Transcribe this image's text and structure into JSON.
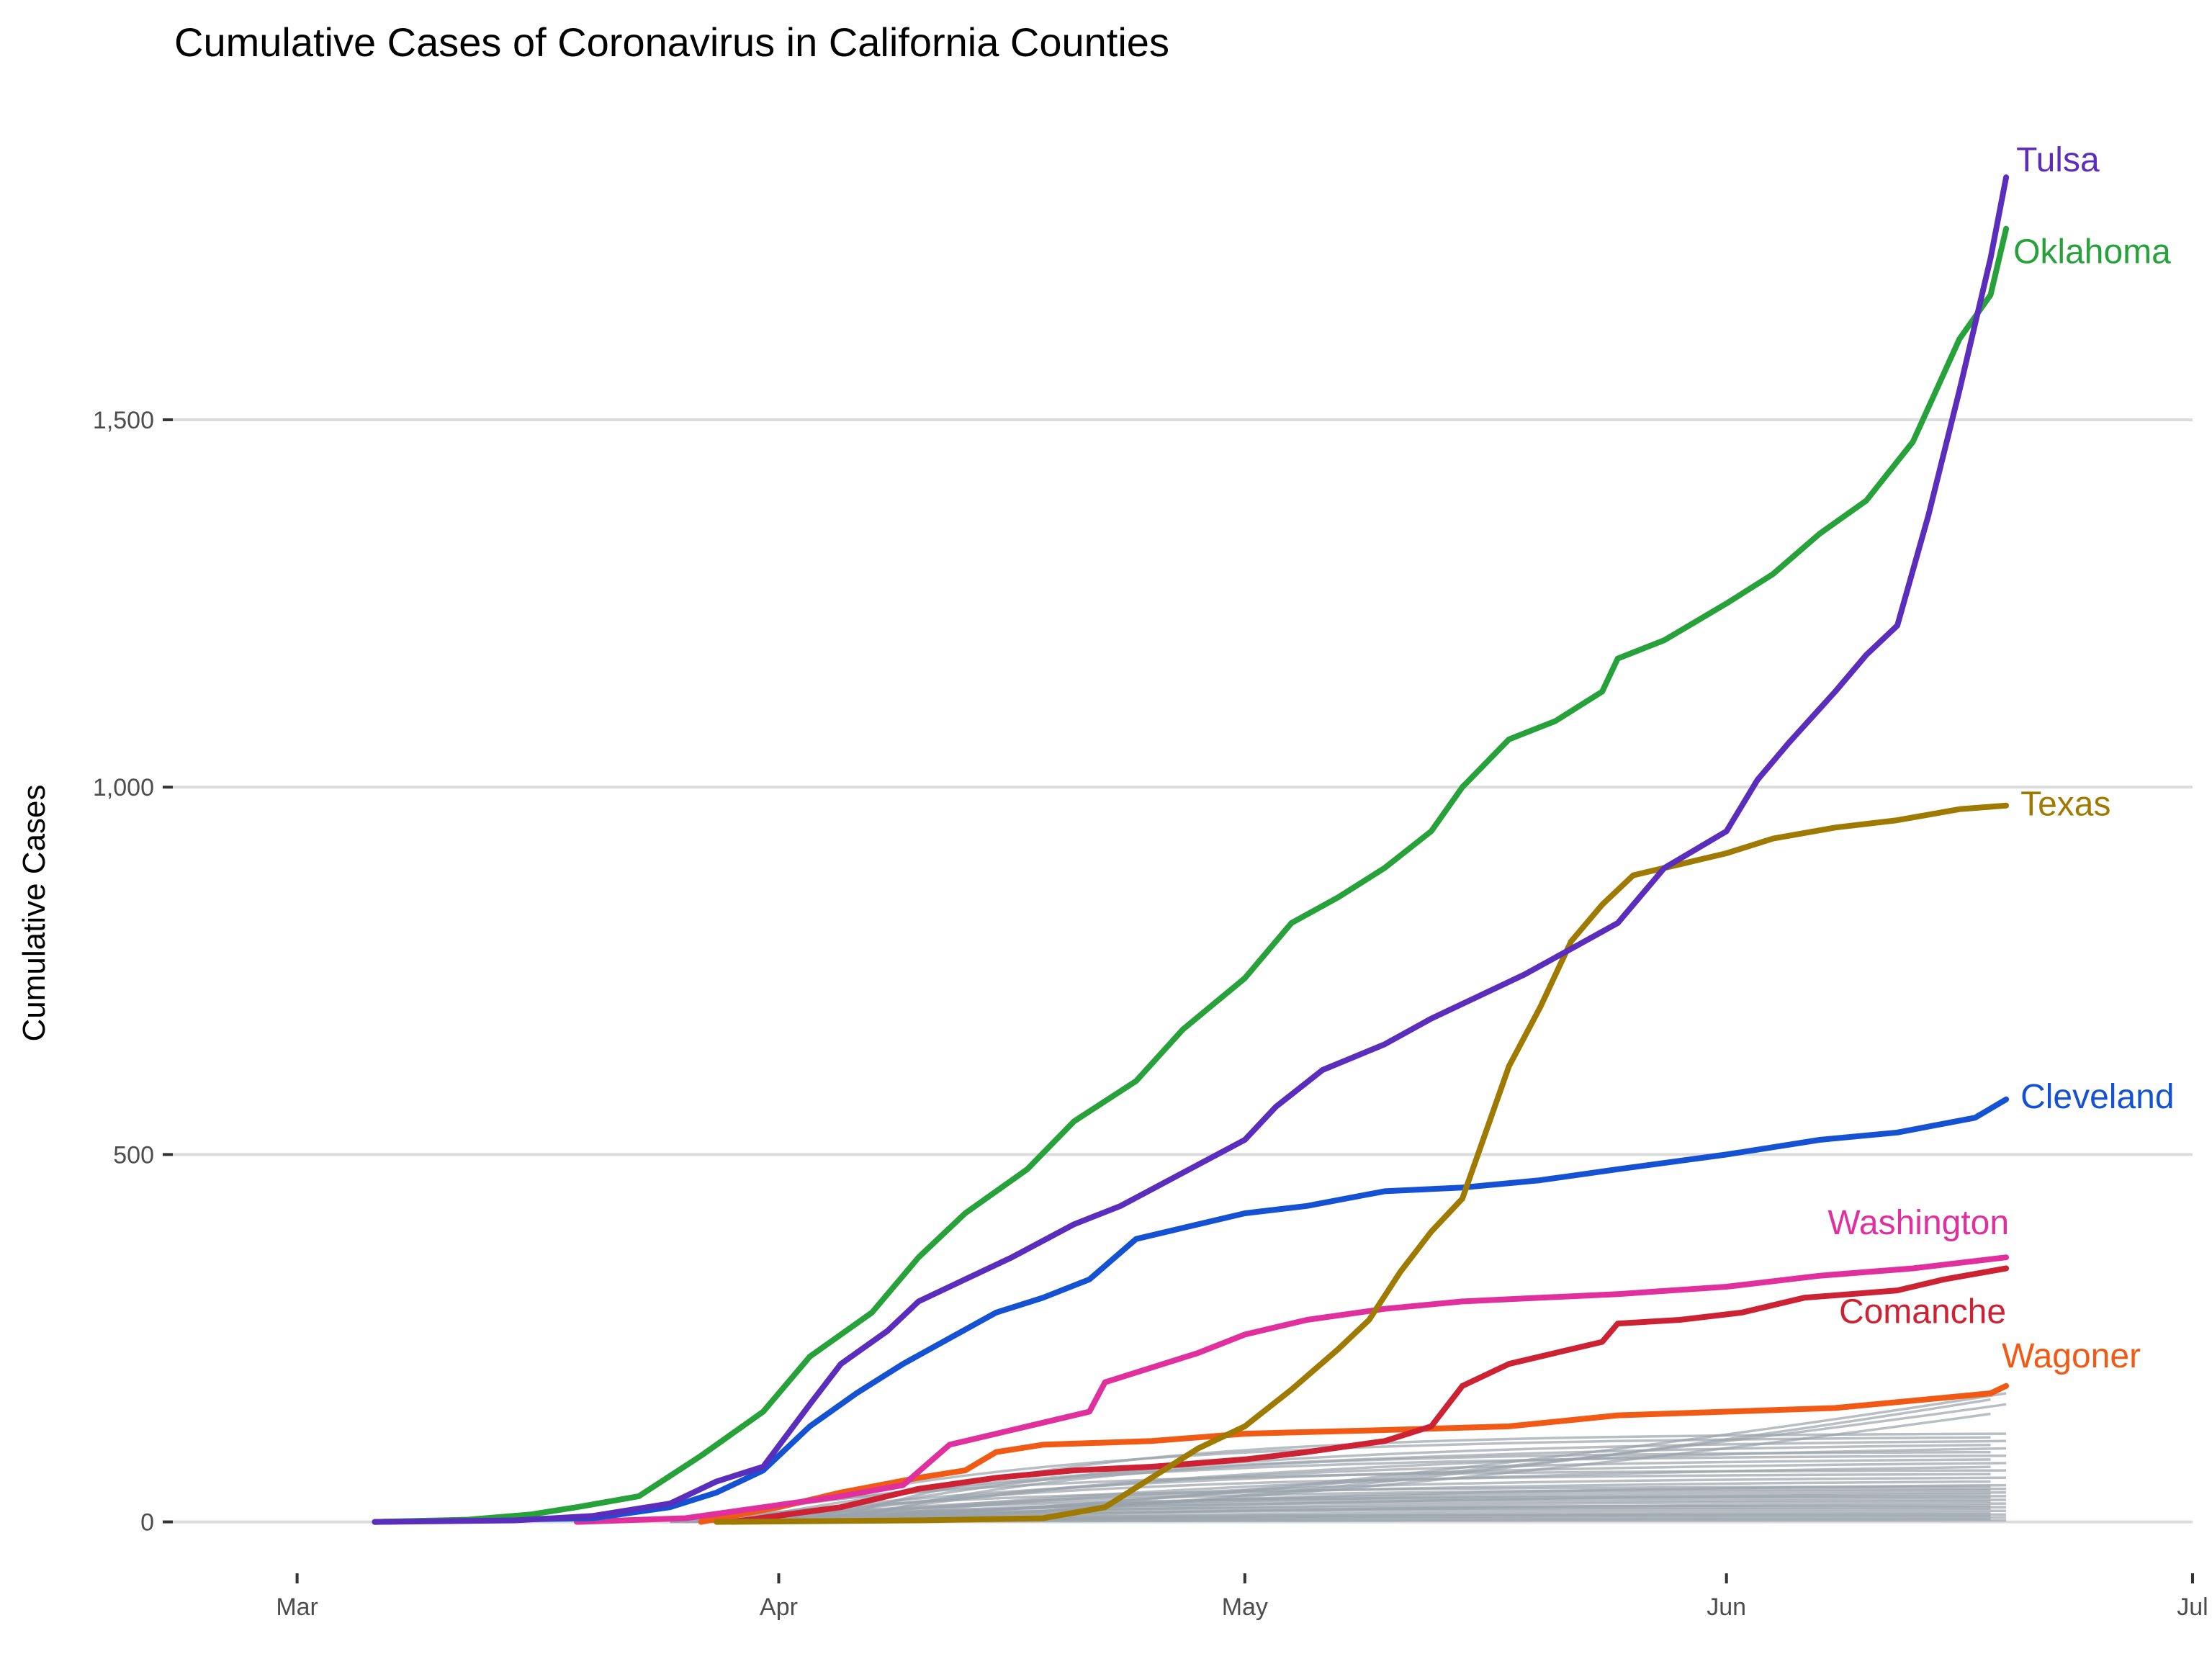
{
  "chart_data": {
    "type": "line",
    "title": "Cumulative Cases of Coronavirus in California Counties",
    "xlabel": "",
    "ylabel": "Cumulative Cases",
    "x_unit": "date (2020)",
    "xlim": [
      "2020-02-22",
      "2020-07-01"
    ],
    "ylim": [
      -70,
      1890
    ],
    "x_ticks": [
      {
        "label": "Mar",
        "date": "2020-03-01"
      },
      {
        "label": "Apr",
        "date": "2020-04-01"
      },
      {
        "label": "May",
        "date": "2020-05-01"
      },
      {
        "label": "Jun",
        "date": "2020-06-01"
      },
      {
        "label": "Jul",
        "date": "2020-07-01"
      }
    ],
    "y_ticks": [
      {
        "label": "0",
        "value": 0
      },
      {
        "label": "500",
        "value": 500
      },
      {
        "label": "1,000",
        "value": 1000
      },
      {
        "label": "1,500",
        "value": 1500
      }
    ],
    "grid": true,
    "legend": "direct labels at line ends",
    "series": [
      {
        "name": "Tulsa",
        "color": "#5b2dbd",
        "points": [
          [
            "2020-03-06",
            0
          ],
          [
            "2020-03-15",
            2
          ],
          [
            "2020-03-20",
            8
          ],
          [
            "2020-03-25",
            25
          ],
          [
            "2020-03-28",
            55
          ],
          [
            "2020-03-31",
            75
          ],
          [
            "2020-04-03",
            160
          ],
          [
            "2020-04-05",
            215
          ],
          [
            "2020-04-08",
            260
          ],
          [
            "2020-04-10",
            300
          ],
          [
            "2020-04-13",
            330
          ],
          [
            "2020-04-16",
            360
          ],
          [
            "2020-04-20",
            405
          ],
          [
            "2020-04-23",
            430
          ],
          [
            "2020-04-27",
            475
          ],
          [
            "2020-05-01",
            520
          ],
          [
            "2020-05-03",
            565
          ],
          [
            "2020-05-06",
            615
          ],
          [
            "2020-05-10",
            650
          ],
          [
            "2020-05-13",
            685
          ],
          [
            "2020-05-16",
            715
          ],
          [
            "2020-05-19",
            745
          ],
          [
            "2020-05-22",
            780
          ],
          [
            "2020-05-25",
            815
          ],
          [
            "2020-05-28",
            890
          ],
          [
            "2020-06-01",
            940
          ],
          [
            "2020-06-03",
            1010
          ],
          [
            "2020-06-05",
            1060
          ],
          [
            "2020-06-08",
            1130
          ],
          [
            "2020-06-10",
            1180
          ],
          [
            "2020-06-12",
            1220
          ],
          [
            "2020-06-14",
            1370
          ],
          [
            "2020-06-16",
            1540
          ],
          [
            "2020-06-18",
            1720
          ],
          [
            "2020-06-19",
            1830
          ]
        ]
      },
      {
        "name": "Oklahoma",
        "color": "#27a13a",
        "points": [
          [
            "2020-03-06",
            0
          ],
          [
            "2020-03-12",
            3
          ],
          [
            "2020-03-16",
            10
          ],
          [
            "2020-03-19",
            20
          ],
          [
            "2020-03-23",
            35
          ],
          [
            "2020-03-27",
            90
          ],
          [
            "2020-03-31",
            150
          ],
          [
            "2020-04-03",
            225
          ],
          [
            "2020-04-07",
            285
          ],
          [
            "2020-04-10",
            360
          ],
          [
            "2020-04-13",
            420
          ],
          [
            "2020-04-17",
            480
          ],
          [
            "2020-04-20",
            545
          ],
          [
            "2020-04-24",
            600
          ],
          [
            "2020-04-27",
            670
          ],
          [
            "2020-05-01",
            740
          ],
          [
            "2020-05-04",
            815
          ],
          [
            "2020-05-07",
            850
          ],
          [
            "2020-05-10",
            890
          ],
          [
            "2020-05-13",
            940
          ],
          [
            "2020-05-15",
            1000
          ],
          [
            "2020-05-18",
            1065
          ],
          [
            "2020-05-21",
            1090
          ],
          [
            "2020-05-24",
            1130
          ],
          [
            "2020-05-25",
            1175
          ],
          [
            "2020-05-28",
            1200
          ],
          [
            "2020-06-01",
            1250
          ],
          [
            "2020-06-04",
            1290
          ],
          [
            "2020-06-07",
            1345
          ],
          [
            "2020-06-10",
            1390
          ],
          [
            "2020-06-13",
            1470
          ],
          [
            "2020-06-16",
            1610
          ],
          [
            "2020-06-18",
            1670
          ],
          [
            "2020-06-19",
            1760
          ]
        ]
      },
      {
        "name": "Texas",
        "color": "#9e7a00",
        "points": [
          [
            "2020-03-28",
            0
          ],
          [
            "2020-04-10",
            2
          ],
          [
            "2020-04-18",
            5
          ],
          [
            "2020-04-22",
            20
          ],
          [
            "2020-04-25",
            60
          ],
          [
            "2020-04-28",
            100
          ],
          [
            "2020-05-01",
            130
          ],
          [
            "2020-05-04",
            180
          ],
          [
            "2020-05-07",
            235
          ],
          [
            "2020-05-09",
            275
          ],
          [
            "2020-05-11",
            340
          ],
          [
            "2020-05-13",
            395
          ],
          [
            "2020-05-15",
            440
          ],
          [
            "2020-05-16",
            500
          ],
          [
            "2020-05-18",
            620
          ],
          [
            "2020-05-20",
            700
          ],
          [
            "2020-05-22",
            790
          ],
          [
            "2020-05-24",
            840
          ],
          [
            "2020-05-26",
            880
          ],
          [
            "2020-05-29",
            895
          ],
          [
            "2020-06-01",
            910
          ],
          [
            "2020-06-04",
            930
          ],
          [
            "2020-06-08",
            945
          ],
          [
            "2020-06-12",
            955
          ],
          [
            "2020-06-16",
            970
          ],
          [
            "2020-06-19",
            975
          ]
        ]
      },
      {
        "name": "Cleveland",
        "color": "#1552d3",
        "points": [
          [
            "2020-03-06",
            0
          ],
          [
            "2020-03-20",
            5
          ],
          [
            "2020-03-25",
            20
          ],
          [
            "2020-03-28",
            40
          ],
          [
            "2020-03-31",
            70
          ],
          [
            "2020-04-03",
            130
          ],
          [
            "2020-04-06",
            175
          ],
          [
            "2020-04-09",
            215
          ],
          [
            "2020-04-12",
            250
          ],
          [
            "2020-04-15",
            285
          ],
          [
            "2020-04-18",
            305
          ],
          [
            "2020-04-21",
            330
          ],
          [
            "2020-04-24",
            385
          ],
          [
            "2020-04-27",
            400
          ],
          [
            "2020-05-01",
            420
          ],
          [
            "2020-05-05",
            430
          ],
          [
            "2020-05-10",
            450
          ],
          [
            "2020-05-15",
            455
          ],
          [
            "2020-05-20",
            465
          ],
          [
            "2020-05-25",
            480
          ],
          [
            "2020-06-01",
            500
          ],
          [
            "2020-06-07",
            520
          ],
          [
            "2020-06-12",
            530
          ],
          [
            "2020-06-17",
            550
          ],
          [
            "2020-06-19",
            575
          ]
        ]
      },
      {
        "name": "Washington",
        "color": "#e0309e",
        "points": [
          [
            "2020-03-19",
            0
          ],
          [
            "2020-03-26",
            5
          ],
          [
            "2020-03-31",
            20
          ],
          [
            "2020-04-05",
            35
          ],
          [
            "2020-04-09",
            50
          ],
          [
            "2020-04-12",
            105
          ],
          [
            "2020-04-15",
            120
          ],
          [
            "2020-04-18",
            135
          ],
          [
            "2020-04-21",
            150
          ],
          [
            "2020-04-22",
            190
          ],
          [
            "2020-04-25",
            210
          ],
          [
            "2020-04-28",
            230
          ],
          [
            "2020-05-01",
            255
          ],
          [
            "2020-05-05",
            275
          ],
          [
            "2020-05-10",
            290
          ],
          [
            "2020-05-15",
            300
          ],
          [
            "2020-05-20",
            305
          ],
          [
            "2020-05-25",
            310
          ],
          [
            "2020-06-01",
            320
          ],
          [
            "2020-06-07",
            335
          ],
          [
            "2020-06-13",
            345
          ],
          [
            "2020-06-19",
            360
          ]
        ]
      },
      {
        "name": "Comanche",
        "color": "#cc2233",
        "points": [
          [
            "2020-03-29",
            0
          ],
          [
            "2020-04-05",
            20
          ],
          [
            "2020-04-10",
            45
          ],
          [
            "2020-04-15",
            60
          ],
          [
            "2020-04-20",
            70
          ],
          [
            "2020-04-25",
            75
          ],
          [
            "2020-05-01",
            85
          ],
          [
            "2020-05-05",
            95
          ],
          [
            "2020-05-10",
            110
          ],
          [
            "2020-05-13",
            130
          ],
          [
            "2020-05-15",
            185
          ],
          [
            "2020-05-18",
            215
          ],
          [
            "2020-05-21",
            230
          ],
          [
            "2020-05-24",
            245
          ],
          [
            "2020-05-25",
            270
          ],
          [
            "2020-05-29",
            275
          ],
          [
            "2020-06-02",
            285
          ],
          [
            "2020-06-06",
            305
          ],
          [
            "2020-06-12",
            315
          ],
          [
            "2020-06-15",
            330
          ],
          [
            "2020-06-19",
            345
          ]
        ]
      },
      {
        "name": "Wagoner",
        "color": "#f05a14",
        "points": [
          [
            "2020-03-27",
            0
          ],
          [
            "2020-04-01",
            20
          ],
          [
            "2020-04-05",
            40
          ],
          [
            "2020-04-10",
            60
          ],
          [
            "2020-04-13",
            70
          ],
          [
            "2020-04-15",
            95
          ],
          [
            "2020-04-18",
            105
          ],
          [
            "2020-04-25",
            110
          ],
          [
            "2020-05-01",
            120
          ],
          [
            "2020-05-10",
            125
          ],
          [
            "2020-05-18",
            130
          ],
          [
            "2020-05-25",
            145
          ],
          [
            "2020-06-01",
            150
          ],
          [
            "2020-06-08",
            155
          ],
          [
            "2020-06-13",
            165
          ],
          [
            "2020-06-18",
            175
          ],
          [
            "2020-06-19",
            185
          ]
        ]
      }
    ],
    "background_series": {
      "description": "other counties drawn in gray",
      "color": "#9aa3ab",
      "start": "2020-03-25",
      "end": "2020-06-19",
      "final_values": [
        2,
        4,
        6,
        8,
        10,
        12,
        15,
        18,
        20,
        22,
        25,
        28,
        30,
        33,
        35,
        38,
        40,
        43,
        45,
        48,
        50,
        55,
        60,
        65,
        70,
        75,
        80,
        85,
        90,
        95,
        100,
        105,
        110,
        115,
        120,
        150,
        160,
        170,
        175
      ]
    }
  }
}
